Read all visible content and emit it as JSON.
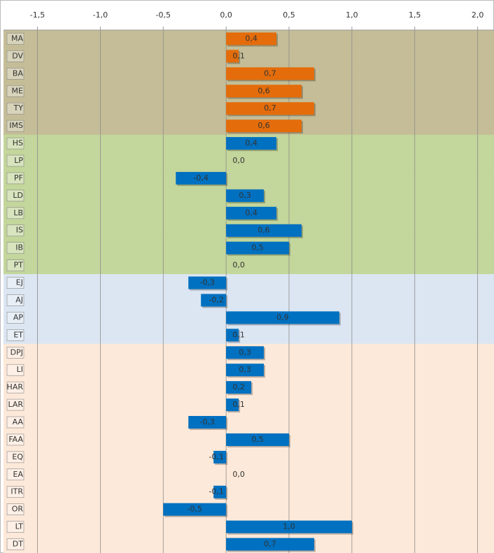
{
  "chart_data": {
    "type": "bar",
    "orientation": "horizontal",
    "categories": [
      "MA",
      "DV",
      "BA",
      "ME",
      "TY",
      "IMS",
      "HS",
      "LP",
      "PF",
      "LD",
      "LB",
      "IS",
      "IB",
      "PT",
      "EJ",
      "AJ",
      "AP",
      "ET",
      "DPJ",
      "LI",
      "HAR",
      "LAR",
      "AA",
      "FAA",
      "EQ",
      "EA",
      "ITR",
      "OR",
      "LT",
      "DT"
    ],
    "values": [
      0.4,
      0.1,
      0.7,
      0.6,
      0.7,
      0.6,
      0.4,
      0.0,
      -0.4,
      0.3,
      0.4,
      0.6,
      0.5,
      0.0,
      -0.3,
      -0.2,
      0.9,
      0.1,
      0.3,
      0.3,
      0.2,
      0.1,
      -0.3,
      0.5,
      -0.1,
      0.0,
      -0.1,
      -0.5,
      1.0,
      0.7
    ],
    "value_labels": [
      "0,4",
      "0,1",
      "0,7",
      "0,6",
      "0,7",
      "0,6",
      "0,4",
      "0,0",
      "-0,4",
      "0,3",
      "0,4",
      "0,6",
      "0,5",
      "0,0",
      "-0,3",
      "-0,2",
      "0,9",
      "0,1",
      "0,3",
      "0,3",
      "0,2",
      "0,1",
      "-0,3",
      "0,5",
      "-0,1",
      "0,0",
      "-0,1",
      "-0,5",
      "1,0",
      "0,7"
    ],
    "colors": [
      "#e46c0a",
      "#e46c0a",
      "#e46c0a",
      "#e46c0a",
      "#e46c0a",
      "#e46c0a",
      "#0070c0",
      "#0070c0",
      "#0070c0",
      "#0070c0",
      "#0070c0",
      "#0070c0",
      "#0070c0",
      "#0070c0",
      "#0070c0",
      "#0070c0",
      "#0070c0",
      "#0070c0",
      "#0070c0",
      "#0070c0",
      "#0070c0",
      "#0070c0",
      "#0070c0",
      "#0070c0",
      "#0070c0",
      "#0070c0",
      "#0070c0",
      "#0070c0",
      "#0070c0",
      "#0070c0"
    ],
    "background_colors": [
      "#c4bd97",
      "#c4bd97",
      "#c4bd97",
      "#c4bd97",
      "#c4bd97",
      "#c4bd97",
      "#c3d69b",
      "#c3d69b",
      "#c3d69b",
      "#c3d69b",
      "#c3d69b",
      "#c3d69b",
      "#c3d69b",
      "#c3d69b",
      "#dce6f2",
      "#dce6f2",
      "#dce6f2",
      "#dce6f2",
      "#fde9d9",
      "#fde9d9",
      "#fde9d9",
      "#fde9d9",
      "#fde9d9",
      "#fde9d9",
      "#fde9d9",
      "#fde9d9",
      "#fde9d9",
      "#fde9d9",
      "#fde9d9",
      "#fde9d9"
    ],
    "xlim": [
      -1.77,
      2.13
    ],
    "xticks": [
      {
        "value": -1.5,
        "label": "-1,5"
      },
      {
        "value": -1.0,
        "label": "-1,0"
      },
      {
        "value": -0.5,
        "label": "-0,5"
      },
      {
        "value": 0.0,
        "label": "0,0"
      },
      {
        "value": 0.5,
        "label": "0,5"
      },
      {
        "value": 1.0,
        "label": "1,0"
      },
      {
        "value": 1.5,
        "label": "1,5"
      },
      {
        "value": 2.0,
        "label": "2,0"
      }
    ],
    "grid": true
  }
}
